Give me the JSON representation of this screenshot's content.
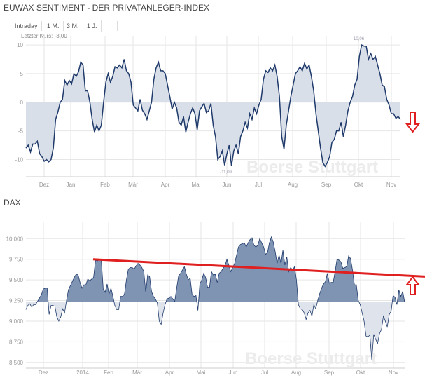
{
  "sentiment": {
    "title": "EUWAX SENTIMENT - DER PRIVATANLEGER-INDEX",
    "tabs": [
      "Intraday",
      "1 M.",
      "3 M.",
      "1 J.",
      ""
    ],
    "active_tab": "1 J.",
    "last_price": "Letzter Kurs: -3,00"
  },
  "dax": {
    "title": "DAX"
  },
  "watermark": "Boerse Stuttgart",
  "colors": {
    "line": "#1f3a6b",
    "fill_sent": "#d9dfe8",
    "fill_dax": "#7f93b3",
    "neg_dax": "#dfe4ec",
    "red": "#e02020"
  },
  "chart_data": [
    {
      "type": "area",
      "title": "EUWAX Sentiment",
      "ylim": [
        -13,
        10.5
      ],
      "yticks": [
        10,
        5,
        0,
        -5,
        -10
      ],
      "ytick_labels": [
        "10",
        "5",
        "0",
        "-5",
        "-10"
      ],
      "xticks": [
        "Dez",
        "Jan",
        "Feb",
        "Mär",
        "Apr",
        "Mai",
        "Jun",
        "Jul",
        "Aug",
        "Sep",
        "Okt",
        "Nov"
      ],
      "baseline": 0,
      "annotations": {
        "max": "10,06",
        "min": "-11,09"
      },
      "values": [
        -8,
        -7.5,
        -8.7,
        -7.3,
        -7.3,
        -6.8,
        -9,
        -9.5,
        -10.3,
        -10,
        -10.4,
        -10,
        -8,
        -3,
        -1.7,
        0,
        0.5,
        3.8,
        3,
        3.8,
        3.2,
        5,
        4.5,
        5.3,
        7,
        6.5,
        2,
        2,
        0,
        -3,
        -5.2,
        -4,
        -5,
        -4,
        0,
        3.5,
        5,
        3.5,
        4.5,
        6.2,
        6,
        6.5,
        6,
        7.5,
        5.5,
        5,
        3.5,
        -0.5,
        -1,
        -1.5,
        0.5,
        -1.4,
        -2,
        -3,
        -1.5,
        0,
        4,
        6,
        7,
        5.5,
        5.5,
        5,
        3,
        1,
        -1.2,
        0,
        -1,
        -3.5,
        -4,
        -2.5,
        -5.2,
        -3.5,
        -2,
        -1,
        -2,
        -4.8,
        -1.5,
        -0.8,
        -0.2,
        -1.8,
        -1.5,
        -0.2,
        -4,
        -6,
        -10,
        -9.5,
        -8.5,
        -11,
        -9,
        -7.5,
        -11.1,
        -8.5,
        -7.5,
        -9,
        -6,
        -5,
        -3.5,
        -4.5,
        -2,
        -3,
        -1,
        -2,
        -0.5,
        0.5,
        4,
        5.5,
        5.2,
        6,
        5.5,
        6.5,
        4.5,
        1,
        -6,
        -8.2,
        -4,
        -1.5,
        1,
        3,
        5,
        5.5,
        6.2,
        5.5,
        6.8,
        5.8,
        6.5,
        4.5,
        2,
        -2,
        -5,
        -8,
        -10.5,
        -11.2,
        -10.5,
        -9.5,
        -7,
        -6.5,
        -5,
        -5,
        -3.5,
        -6,
        -4,
        -1.5,
        0,
        1,
        3,
        4,
        8,
        10,
        9.8,
        9.8,
        7.5,
        8.5,
        7.5,
        8,
        6.5,
        5,
        3,
        2.7,
        0.5,
        -0.5,
        -2,
        -2,
        -2.8,
        -2.5,
        -3
      ]
    },
    {
      "type": "area",
      "title": "DAX",
      "ylim": [
        8430,
        10130
      ],
      "yticks": [
        10000,
        9750,
        9500,
        9250,
        9000,
        8750,
        8500
      ],
      "ytick_labels": [
        "10.000",
        "9.750",
        "9.500",
        "9.250",
        "9.000",
        "8.750",
        "8.500"
      ],
      "xticks": [
        "Dez",
        "2014",
        "Feb",
        "Mär",
        "Apr",
        "Mai",
        "Jun",
        "Jul",
        "Aug",
        "Sep",
        "Okt",
        "Nov"
      ],
      "baseline": 9235,
      "trendline": {
        "from": 9750,
        "to": 9540
      },
      "values": [
        9140,
        9190,
        9210,
        9170,
        9200,
        9200,
        9240,
        9280,
        9320,
        9390,
        9400,
        9400,
        9080,
        9190,
        9190,
        9180,
        9050,
        9000,
        9050,
        9150,
        9100,
        9250,
        9380,
        9430,
        9480,
        9530,
        9570,
        9560,
        9470,
        9400,
        9440,
        9440,
        9510,
        9490,
        9510,
        9530,
        9740,
        9730,
        9750,
        9740,
        9390,
        9350,
        9450,
        9330,
        9400,
        9300,
        9190,
        9140,
        9140,
        9300,
        9300,
        9330,
        9500,
        9630,
        9650,
        9650,
        9630,
        9670,
        9700,
        9680,
        9650,
        9600,
        9350,
        9560,
        9540,
        9360,
        9300,
        9270,
        9220,
        9000,
        8960,
        9100,
        9200,
        9270,
        9280,
        9300,
        9270,
        9240,
        9400,
        9550,
        9580,
        9620,
        9660,
        9570,
        9500,
        9520,
        9320,
        9300,
        9310,
        9130,
        9450,
        9500,
        9580,
        9530,
        9410,
        9410,
        9600,
        9560,
        9570,
        9470,
        9580,
        9600,
        9640,
        9670,
        9750,
        9680,
        9600,
        9650,
        9700,
        9800,
        9900,
        9930,
        9940,
        9950,
        9900,
        9950,
        9990,
        10010,
        9920,
        9900,
        9920,
        10000,
        9950,
        9900,
        9810,
        9830,
        9950,
        10020,
        9960,
        9840,
        9700,
        9800,
        9700,
        9860,
        9680,
        9780,
        9600,
        9650,
        9620,
        9660,
        9500,
        9200,
        9150,
        9140,
        9100,
        9020,
        9100,
        9130,
        9060,
        9200,
        9150,
        9250,
        9330,
        9400,
        9450,
        9480,
        9580,
        9460,
        9470,
        9470,
        9600,
        9750,
        9740,
        9720,
        9640,
        9650,
        9660,
        9790,
        9760,
        9620,
        9440,
        9440,
        9250,
        9200,
        9100,
        9000,
        8820,
        8810,
        8830,
        8530,
        8840,
        8780,
        8730,
        8850,
        8900,
        9060,
        9000,
        8930,
        9080,
        9120,
        9310,
        9290,
        9200,
        9380,
        9300,
        9360,
        9230
      ]
    }
  ]
}
